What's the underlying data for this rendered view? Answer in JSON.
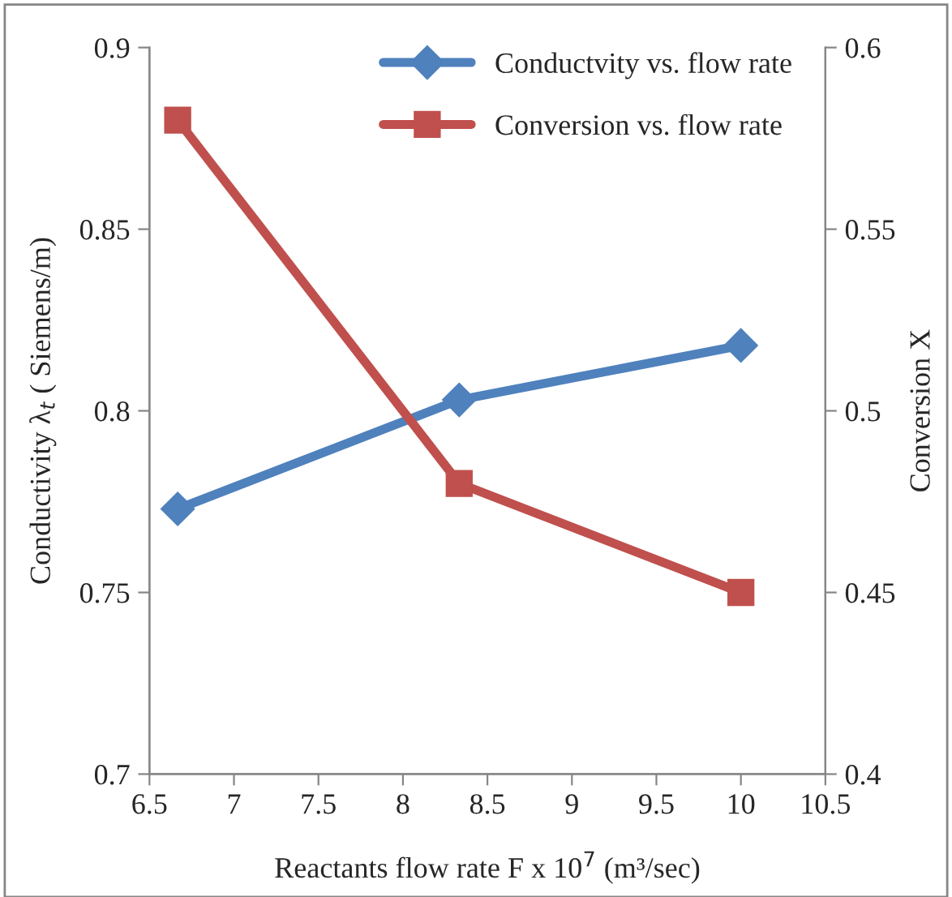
{
  "chart_data": {
    "type": "line",
    "xlabel": "Reactants flow rate F x 10$^{7}$ (m³/sec)",
    "ylabel": "Conductivity λ$_{t}$ ( Siemens/m)",
    "y2label": "Conversion X",
    "x": [
      6.667,
      8.333,
      10
    ],
    "series": [
      {
        "name": "Conductvity vs. flow rate",
        "color": "#4f81bd",
        "values": [
          0.773,
          0.803,
          0.818
        ],
        "marker": "diamond"
      },
      {
        "name": "Conversion vs. flow rate",
        "color": "#c0504d",
        "values": [
          0.58,
          0.48,
          0.45
        ],
        "marker": "square",
        "axis": "y2"
      }
    ],
    "xlim": [
      6.5,
      10.5
    ],
    "xticks": [
      6.5,
      7,
      7.5,
      8,
      8.5,
      9,
      9.5,
      10,
      10.5
    ],
    "ylim": [
      0.7,
      0.9
    ],
    "yticks": [
      0.7,
      0.75,
      0.8,
      0.85,
      0.9
    ],
    "y2lim": [
      0.4,
      0.6
    ],
    "y2ticks": [
      0.4,
      0.45,
      0.5,
      0.55,
      0.6
    ],
    "legend": "top right",
    "grid": false,
    "line_style": "solid"
  }
}
